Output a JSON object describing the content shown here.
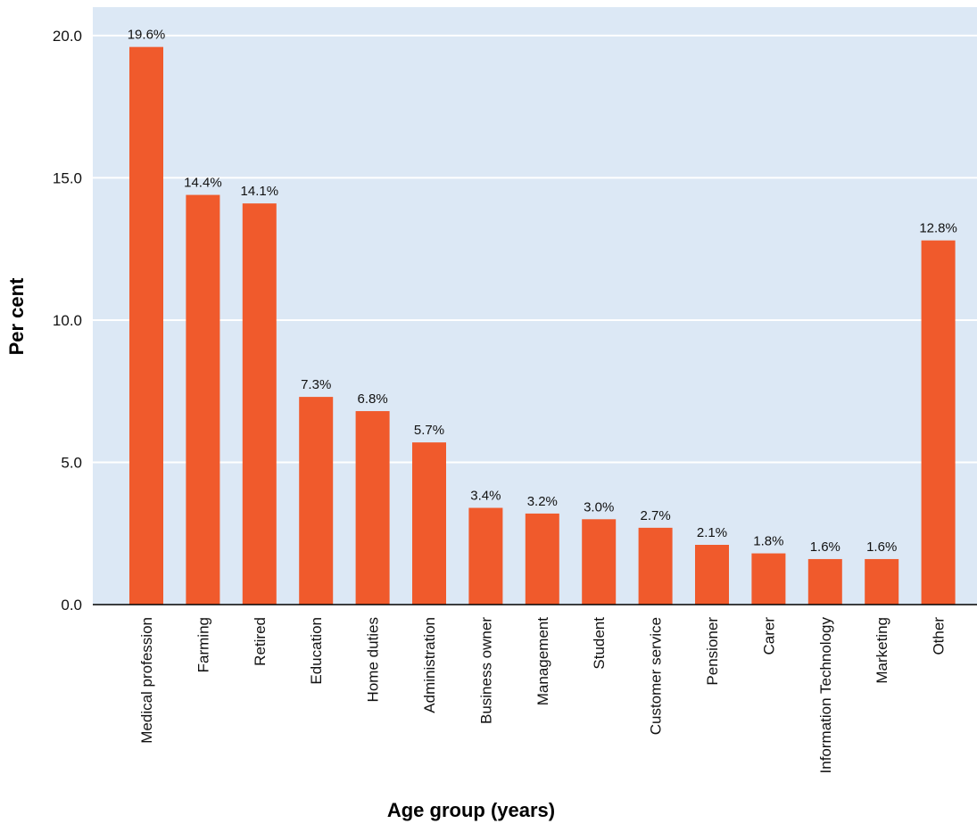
{
  "chart_data": {
    "type": "bar",
    "title": "",
    "xlabel": "Age group (years)",
    "ylabel": "Per cent",
    "ylim": [
      0,
      21
    ],
    "yticks": [
      0,
      5,
      10,
      15,
      20
    ],
    "ytick_labels": [
      "0.0",
      "5.0",
      "10.0",
      "15.0",
      "20.0"
    ],
    "grid": "horizontal",
    "categories": [
      "Medical profession",
      "Farming",
      "Retired",
      "Education",
      "Home duties",
      "Administration",
      "Business owner",
      "Management",
      "Student",
      "Customer service",
      "Pensioner",
      "Carer",
      "Information Technology",
      "Marketing",
      "Other"
    ],
    "values": [
      19.6,
      14.4,
      14.1,
      7.3,
      6.8,
      5.7,
      3.4,
      3.2,
      3.0,
      2.7,
      2.1,
      1.8,
      1.6,
      1.6,
      12.8
    ],
    "data_labels": [
      "19.6%",
      "14.4%",
      "14.1%",
      "7.3%",
      "6.8%",
      "5.7%",
      "3.4%",
      "3.2%",
      "3.0%",
      "2.7%",
      "2.1%",
      "1.8%",
      "1.6%",
      "1.6%",
      "12.8%"
    ],
    "colors": {
      "bar": "#f05a2c",
      "plot_background": "#dce8f5",
      "grid": "#ffffff",
      "axis": "#000000"
    }
  }
}
